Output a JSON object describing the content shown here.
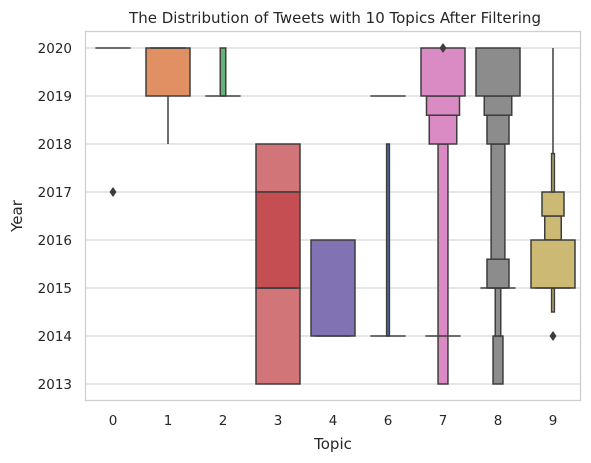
{
  "chart_data": {
    "type": "boxen",
    "title": "The Distribution of Tweets with 10 Topics After Filtering",
    "xlabel": "Topic",
    "ylabel": "Year",
    "categories": [
      "0",
      "1",
      "2",
      "3",
      "4",
      "6",
      "7",
      "8",
      "9"
    ],
    "yticks": [
      2013,
      2014,
      2015,
      2016,
      2017,
      2018,
      2019,
      2020
    ],
    "ylim": [
      2012.67,
      2020.33
    ],
    "grid": "horizontal",
    "series": [
      {
        "category": "0",
        "color": "#4c72b0",
        "boxes": [],
        "median": 2020,
        "whiskers": [],
        "outliers": [
          2017
        ]
      },
      {
        "category": "1",
        "color": "#dd8452",
        "boxes": [
          {
            "low": 2019,
            "high": 2020,
            "shade": 0.9
          }
        ],
        "median": 2020,
        "whiskers": [
          [
            2018.6,
            2019
          ],
          [
            2018.0,
            2018.6
          ]
        ],
        "outliers": []
      },
      {
        "category": "2",
        "color": "#55a868",
        "boxes": [
          {
            "low": 2019,
            "high": 2020,
            "shade": 0.9,
            "width": 0.1
          }
        ],
        "median": 2019,
        "whiskers": [],
        "outliers": []
      },
      {
        "category": "3",
        "color": "#c44e52",
        "boxes": [
          {
            "low": 2013,
            "high": 2015,
            "shade": 0.78
          },
          {
            "low": 2017,
            "high": 2018,
            "shade": 0.78
          },
          {
            "low": 2015,
            "high": 2017,
            "shade": 1.0
          }
        ],
        "median": 2015,
        "whiskers": [],
        "outliers": []
      },
      {
        "category": "4",
        "color": "#8172b3",
        "boxes": [
          {
            "low": 2014,
            "high": 2016,
            "shade": 1.0
          }
        ],
        "median": 2014,
        "whiskers": [],
        "outliers": []
      },
      {
        "category": "6",
        "color": "#4c72b0",
        "boxes": [
          {
            "low": 2014,
            "high": 2018,
            "shade": 1.0,
            "width": 0.05
          }
        ],
        "median": 2019,
        "median2": 2014,
        "whiskers": [],
        "outliers": []
      },
      {
        "category": "7",
        "color": "#da8bc3",
        "boxes": [
          {
            "low": 2013,
            "high": 2018,
            "shade": 1.0,
            "width": 0.18
          },
          {
            "low": 2018,
            "high": 2018.6,
            "shade": 1.0,
            "width": 0.5
          },
          {
            "low": 2018.6,
            "high": 2019,
            "shade": 1.0,
            "width": 0.6
          },
          {
            "low": 2019,
            "high": 2020,
            "shade": 1.0,
            "width": 0.8
          }
        ],
        "median": 2014,
        "whiskers": [],
        "outliers": [
          2020
        ]
      },
      {
        "category": "8",
        "color": "#8c8c8c",
        "boxes": [
          {
            "low": 2013,
            "high": 2014,
            "shade": 1.0,
            "width": 0.18
          },
          {
            "low": 2014,
            "high": 2015,
            "shade": 1.0,
            "width": 0.1
          },
          {
            "low": 2015,
            "high": 2018,
            "shade": 1.0,
            "width": 0.25
          },
          {
            "low": 2018,
            "high": 2018.6,
            "shade": 1.0,
            "width": 0.4
          },
          {
            "low": 2018.6,
            "high": 2019,
            "shade": 1.0,
            "width": 0.5
          },
          {
            "low": 2019,
            "high": 2020,
            "shade": 1.0,
            "width": 0.8
          },
          {
            "low": 2015,
            "high": 2015.6,
            "shade": 1.0,
            "width": 0.4
          }
        ],
        "median": 2015,
        "whiskers": [
          [
            2014,
            2015
          ]
        ],
        "outliers": []
      },
      {
        "category": "9",
        "color": "#ccb974",
        "boxes": [
          {
            "low": 2014.5,
            "high": 2015,
            "shade": 1.0,
            "width": 0.05
          },
          {
            "low": 2016,
            "high": 2016.5,
            "shade": 1.0,
            "width": 0.3
          },
          {
            "low": 2016.5,
            "high": 2017,
            "shade": 1.0,
            "width": 0.4
          },
          {
            "low": 2017,
            "high": 2017.8,
            "shade": 1.0,
            "width": 0.05
          },
          {
            "low": 2015,
            "high": 2016,
            "shade": 1.0,
            "width": 0.8
          }
        ],
        "median": 2015,
        "whiskers": [
          [
            2017.8,
            2020
          ]
        ],
        "outliers": [
          2014
        ]
      }
    ]
  }
}
